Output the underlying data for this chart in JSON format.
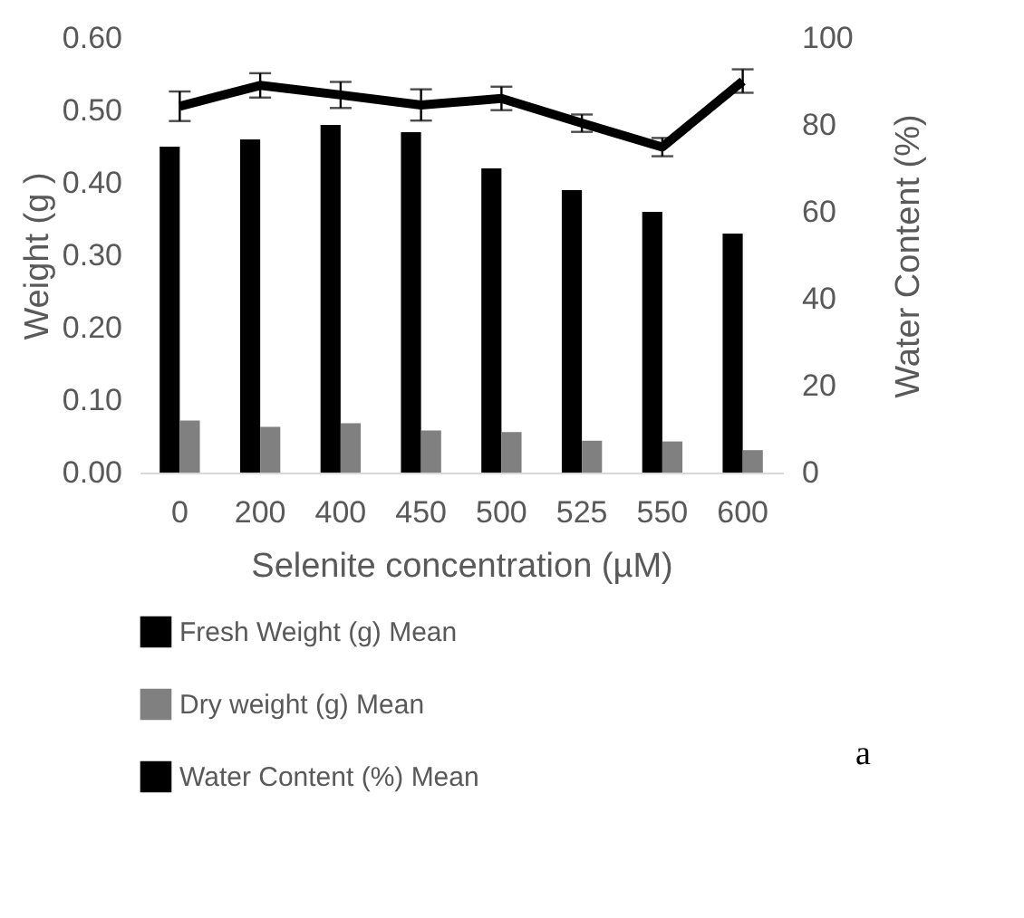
{
  "chart_data": {
    "type": "bar",
    "xlabel": "Selenite concentration (µM)",
    "ylabel": "Weight (g )",
    "y2label": "Water Content (%)",
    "categories": [
      "0",
      "200",
      "400",
      "450",
      "500",
      "525",
      "550",
      "600"
    ],
    "series": [
      {
        "name": "Fresh Weight (g) Mean",
        "color": "#000000",
        "values": [
          0.45,
          0.46,
          0.48,
          0.47,
          0.42,
          0.39,
          0.36,
          0.33
        ]
      },
      {
        "name": "Dry weight (g) Mean",
        "color": "#808080",
        "values": [
          0.072,
          0.063,
          0.068,
          0.058,
          0.056,
          0.044,
          0.043,
          0.031
        ]
      },
      {
        "name": "Water Content (%) Mean",
        "type": "line",
        "axis": "y2",
        "color": "#000000",
        "values": [
          84.3,
          89.1,
          86.9,
          84.6,
          86.1,
          80.4,
          74.9,
          90.1
        ],
        "errors": [
          3.4,
          2.8,
          3.0,
          3.6,
          2.7,
          2.0,
          2.1,
          2.7
        ]
      }
    ],
    "ylim": [
      0,
      0.6
    ],
    "yticks": [
      {
        "value": 0,
        "label": "0.00"
      },
      {
        "value": 0.1,
        "label": "0.10"
      },
      {
        "value": 0.2,
        "label": "0.20"
      },
      {
        "value": 0.3,
        "label": "0.30"
      },
      {
        "value": 0.4,
        "label": "0.40"
      },
      {
        "value": 0.5,
        "label": "0.50"
      },
      {
        "value": 0.6,
        "label": "0.60"
      }
    ],
    "y2lim": [
      0,
      100
    ],
    "y2ticks": [
      0,
      20,
      40,
      60,
      80,
      100
    ],
    "legend": "bottom",
    "annotations": [
      "a"
    ]
  }
}
